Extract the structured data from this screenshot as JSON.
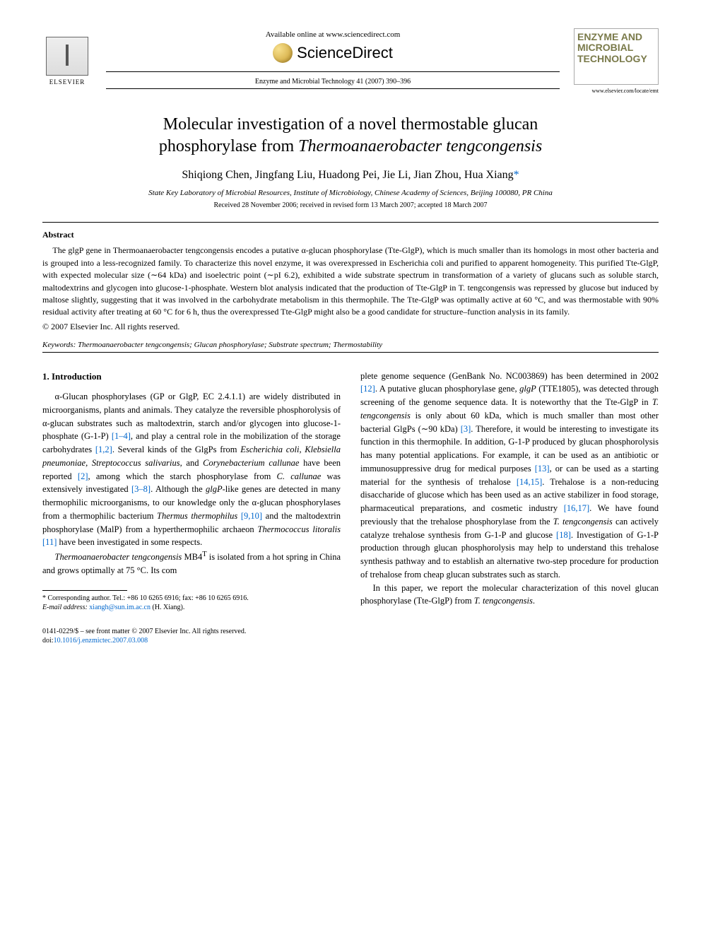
{
  "header": {
    "available_online": "Available online at www.sciencedirect.com",
    "sciencedirect": "ScienceDirect",
    "elsevier": "ELSEVIER",
    "journal_citation": "Enzyme and Microbial Technology 41 (2007) 390–396",
    "cover_title_line1": "ENZYME AND",
    "cover_title_line2": "MICROBIAL",
    "cover_title_line3": "TECHNOLOGY",
    "cover_url": "www.elsevier.com/locate/emt"
  },
  "article": {
    "title_line1": "Molecular investigation of a novel thermostable glucan",
    "title_line2_pre": "phosphorylase from ",
    "title_line2_italic": "Thermoanaerobacter tengcongensis",
    "authors": "Shiqiong Chen, Jingfang Liu, Huadong Pei, Jie Li, Jian Zhou, Hua Xiang",
    "corr_mark": "*",
    "affiliation": "State Key Laboratory of Microbial Resources, Institute of Microbiology, Chinese Academy of Sciences, Beijing 100080, PR China",
    "dates": "Received 28 November 2006; received in revised form 13 March 2007; accepted 18 March 2007"
  },
  "abstract": {
    "heading": "Abstract",
    "body": "The glgP gene in Thermoanaerobacter tengcongensis encodes a putative α-glucan phosphorylase (Tte-GlgP), which is much smaller than its homologs in most other bacteria and is grouped into a less-recognized family. To characterize this novel enzyme, it was overexpressed in Escherichia coli and purified to apparent homogeneity. This purified Tte-GlgP, with expected molecular size (∼64 kDa) and isoelectric point (∼pI 6.2), exhibited a wide substrate spectrum in transformation of a variety of glucans such as soluble starch, maltodextrins and glycogen into glucose-1-phosphate. Western blot analysis indicated that the production of Tte-GlgP in T. tengcongensis was repressed by glucose but induced by maltose slightly, suggesting that it was involved in the carbohydrate metabolism in this thermophile. The Tte-GlgP was optimally active at 60 °C, and was thermostable with 90% residual activity after treating at 60 °C for 6 h, thus the overexpressed Tte-GlgP might also be a good candidate for structure–function analysis in its family.",
    "copyright": "© 2007 Elsevier Inc. All rights reserved."
  },
  "keywords": {
    "label": "Keywords:",
    "text": " Thermoanaerobacter tengcongensis; Glucan phosphorylase; Substrate spectrum; Thermostability"
  },
  "intro": {
    "heading": "1. Introduction",
    "p1a": "α-Glucan phosphorylases (GP or GlgP, EC 2.4.1.1) are widely distributed in microorganisms, plants and animals. They catalyze the reversible phosphorolysis of α-glucan substrates such as maltodextrin, starch and/or glycogen into glucose-1-phosphate (G-1-P) ",
    "ref1": "[1–4]",
    "p1b": ", and play a central role in the mobilization of the storage carbohydrates ",
    "ref2": "[1,2]",
    "p1c": ". Several kinds of the GlgPs from ",
    "p1c_ital": "Escherichia coli, Klebsiella pneumoniae, Streptococcus salivarius,",
    "p1d": " and ",
    "p1d_ital": "Corynebacterium callunae",
    "p1e": " have been reported ",
    "ref3": "[2]",
    "p1f": ", among which the starch phosphorylase from ",
    "p1f_ital": "C. callunae",
    "p1g": " was extensively investigated ",
    "ref4": "[3–8]",
    "p1h": ". Although the ",
    "p1h_ital": "glgP",
    "p1i": "-like genes are detected in many thermophilic microorganisms, to our knowledge only the α-glucan phosphorylases from a thermophilic bacterium ",
    "p1i_ital": "Thermus thermophilus",
    "p1j": " ",
    "ref5": "[9,10]",
    "p1k": " and the maltodextrin phosphorylase (MalP) from a hyperthermophilic archaeon ",
    "p1k_ital": "Thermococcus litoralis",
    "p1l": " ",
    "ref6": "[11]",
    "p1m": " have been investigated in some respects.",
    "p2a_ital": "Thermoanaerobacter tengcongensis",
    "p2a": " MB4",
    "p2a_sup": "T",
    "p2b": " is isolated from a hot spring in China and grows optimally at 75 °C. Its com",
    "p2c": "plete genome sequence (GenBank No. NC003869) has been determined in 2002 ",
    "ref7": "[12]",
    "p2d": ". A putative glucan phosphorylase gene, ",
    "p2d_ital": "glgP",
    "p2e": " (TTE1805), was detected through screening of the genome sequence data. It is noteworthy that the Tte-GlgP in ",
    "p2e_ital": "T. tengcongensis",
    "p2f": " is only about 60 kDa, which is much smaller than most other bacterial GlgPs (∼90 kDa) ",
    "ref8": "[3]",
    "p2g": ". Therefore, it would be interesting to investigate its function in this thermophile. In addition, G-1-P produced by glucan phosphorolysis has many potential applications. For example, it can be used as an antibiotic or immunosuppressive drug for medical purposes ",
    "ref9": "[13]",
    "p2h": ", or can be used as a starting material for the synthesis of trehalose ",
    "ref10": "[14,15]",
    "p2i": ". Trehalose is a non-reducing disaccharide of glucose which has been used as an active stabilizer in food storage, pharmaceutical preparations, and cosmetic industry ",
    "ref11": "[16,17]",
    "p2j": ". We have found previously that the trehalose phosphorylase from the ",
    "p2j_ital": "T. tengcongensis",
    "p2k": " can actively catalyze trehalose synthesis from G-1-P and glucose ",
    "ref12": "[18]",
    "p2l": ". Investigation of G-1-P production through glucan phosphorolysis may help to understand this trehalose synthesis pathway and to establish an alternative two-step procedure for production of trehalose from cheap glucan substrates such as starch.",
    "p3a": "In this paper, we report the molecular characterization of this novel glucan phosphorylase (Tte-GlgP) from ",
    "p3a_ital": "T. tengcongensis",
    "p3b": "."
  },
  "footnote": {
    "corr": "* Corresponding author. Tel.: +86 10 6265 6916; fax: +86 10 6265 6916.",
    "email_label": "E-mail address:",
    "email": "xiangh@sun.im.ac.cn",
    "email_suffix": " (H. Xiang)."
  },
  "footer": {
    "issn": "0141-0229/$ – see front matter © 2007 Elsevier Inc. All rights reserved.",
    "doi_label": "doi:",
    "doi": "10.1016/j.enzmictec.2007.03.008"
  },
  "colors": {
    "link": "#0066cc",
    "text": "#000000",
    "cover_title": "#7a7a4a"
  }
}
